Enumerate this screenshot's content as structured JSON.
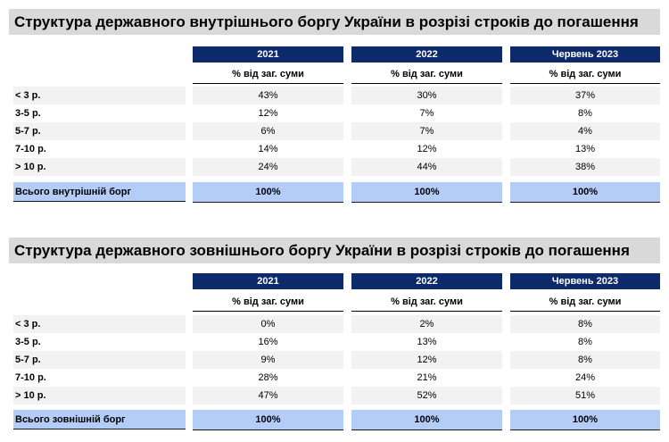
{
  "tables": [
    {
      "title": "Структура державного внутрішнього боргу України в розрізі строків до погашення",
      "columns": [
        "2021",
        "2022",
        "Червень 2023"
      ],
      "subheader": "% від заг. суми",
      "rows": [
        {
          "label": "< 3 р.",
          "values": [
            "43%",
            "30%",
            "37%"
          ]
        },
        {
          "label": "3-5 р.",
          "values": [
            "12%",
            "7%",
            "8%"
          ]
        },
        {
          "label": "5-7 р.",
          "values": [
            "6%",
            "7%",
            "4%"
          ]
        },
        {
          "label": "7-10 р.",
          "values": [
            "14%",
            "12%",
            "13%"
          ]
        },
        {
          "label": "> 10 р.",
          "values": [
            "24%",
            "44%",
            "38%"
          ]
        }
      ],
      "total": {
        "label": "Всього внутрішній борг",
        "values": [
          "100%",
          "100%",
          "100%"
        ]
      }
    },
    {
      "title": "Структура державного зовнішнього боргу України в розрізі строків до погашення",
      "columns": [
        "2021",
        "2022",
        "Червень 2023"
      ],
      "subheader": "% від заг. суми",
      "rows": [
        {
          "label": "< 3 р.",
          "values": [
            "0%",
            "2%",
            "8%"
          ]
        },
        {
          "label": "3-5 р.",
          "values": [
            "16%",
            "13%",
            "8%"
          ]
        },
        {
          "label": "5-7 р.",
          "values": [
            "9%",
            "12%",
            "8%"
          ]
        },
        {
          "label": "7-10 р.",
          "values": [
            "28%",
            "21%",
            "24%"
          ]
        },
        {
          "label": "> 10 р.",
          "values": [
            "47%",
            "52%",
            "51%"
          ]
        }
      ],
      "total": {
        "label": "Всього зовнішній борг",
        "values": [
          "100%",
          "100%",
          "100%"
        ]
      }
    }
  ],
  "colors": {
    "banner_bg": "#d9d9d9",
    "year_header_bg": "#0d2a6b",
    "total_row_bg": "#b4cdf7",
    "odd_row_bg": "#f2f2f2"
  }
}
